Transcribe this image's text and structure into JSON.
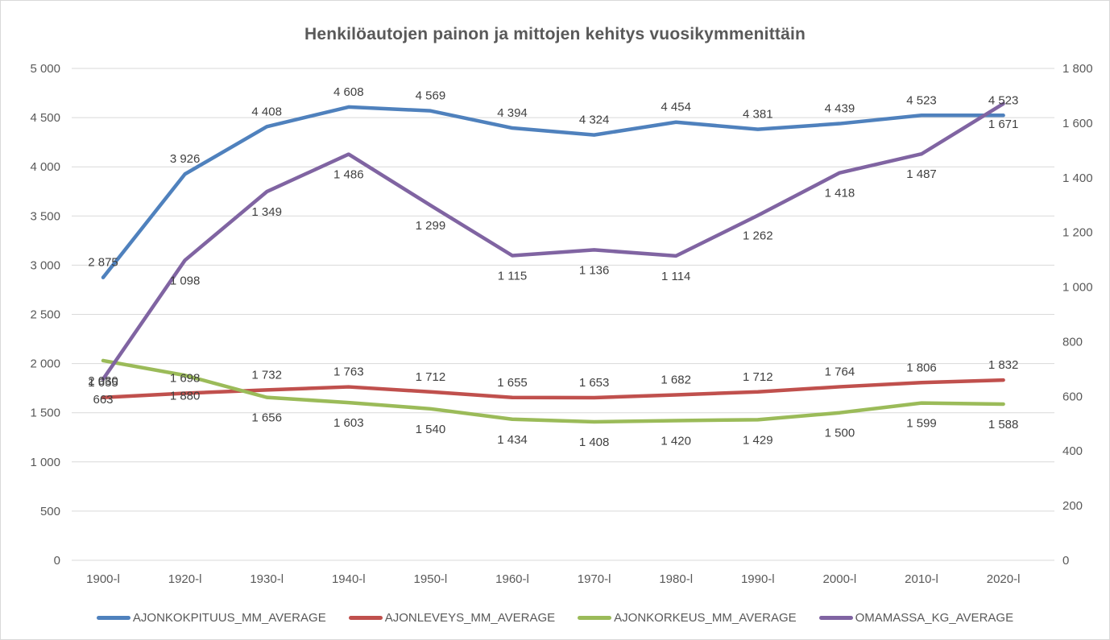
{
  "title": "Henkilöautojen painon ja mittojen kehitys vuosikymmenittäin",
  "colors": {
    "background": "#FFFFFF",
    "border": "#D9D9D9",
    "gridline": "#D9D9D9",
    "tick_text": "#595959",
    "data_label_text": "#404040",
    "title_text": "#595959",
    "series_blue": "#4F81BD",
    "series_red": "#C0504D",
    "series_green": "#9BBB59",
    "series_purple": "#8064A2"
  },
  "chart_data": {
    "type": "line",
    "title": "Henkilöautojen painon ja mittojen kehitys vuosikymmenittäin",
    "grid": true,
    "legend_position": "bottom",
    "number_format": "space thousands separator (fi-FI)",
    "categories": [
      "1900-l",
      "1920-l",
      "1930-l",
      "1940-l",
      "1950-l",
      "1960-l",
      "1970-l",
      "1980-l",
      "1990-l",
      "2000-l",
      "2010-l",
      "2020-l"
    ],
    "axes": {
      "left": {
        "min": 0,
        "max": 5000,
        "step": 500,
        "tick_labels": [
          "0",
          "500",
          "1 000",
          "1 500",
          "2 000",
          "2 500",
          "3 000",
          "3 500",
          "4 000",
          "4 500",
          "5 000"
        ]
      },
      "right": {
        "min": 0,
        "max": 1800,
        "step": 200,
        "tick_labels": [
          "0",
          "200",
          "400",
          "600",
          "800",
          "1 000",
          "1 200",
          "1 400",
          "1 600",
          "1 800"
        ]
      }
    },
    "series": [
      {
        "name": "AJONKOKPITUUS_MM_AVERAGE",
        "color": "#4F81BD",
        "axis": "left",
        "label_position": "above",
        "values": [
          2875,
          3926,
          4408,
          4608,
          4569,
          4394,
          4324,
          4454,
          4381,
          4439,
          4523,
          4523
        ]
      },
      {
        "name": "AJONLEVEYS_MM_AVERAGE",
        "color": "#C0504D",
        "axis": "left",
        "label_position": "above",
        "values": [
          1655,
          1698,
          1732,
          1763,
          1712,
          1655,
          1653,
          1682,
          1712,
          1764,
          1806,
          1832
        ]
      },
      {
        "name": "AJONKORKEUS_MM_AVERAGE",
        "color": "#9BBB59",
        "axis": "left",
        "label_position": "below",
        "values": [
          2030,
          1880,
          1656,
          1603,
          1540,
          1434,
          1408,
          1420,
          1429,
          1500,
          1599,
          1588
        ]
      },
      {
        "name": "OMAMASSA_KG_AVERAGE",
        "color": "#8064A2",
        "axis": "right",
        "label_position": "below",
        "values": [
          663,
          1098,
          1349,
          1486,
          1299,
          1115,
          1136,
          1114,
          1262,
          1418,
          1487,
          1671
        ]
      }
    ]
  }
}
